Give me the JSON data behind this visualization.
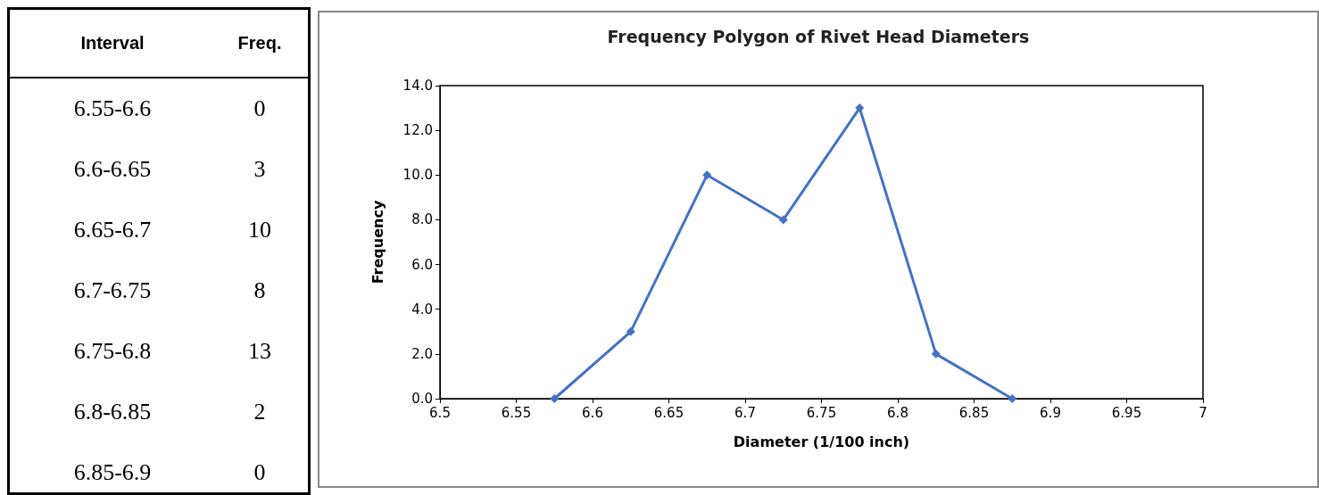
{
  "chart_data": [
    {
      "type": "other",
      "xlabel": "Interval",
      "ylabel": "Freq.",
      "categories": [
        "6.55-6.6",
        "6.6-6.65",
        "6.65-6.7",
        "6.7-6.75",
        "6.75-6.8",
        "6.8-6.85",
        "6.85-6.9"
      ],
      "values": [
        0,
        3,
        10,
        8,
        13,
        2,
        0
      ],
      "data_labels": true
    },
    {
      "type": "line",
      "title": "Frequency Polygon of Rivet Head Diameters",
      "xlabel": "Diameter (1/100 inch)",
      "ylabel": "Frequency",
      "x": [
        6.575,
        6.625,
        6.675,
        6.725,
        6.775,
        6.825,
        6.875
      ],
      "series": [
        {
          "color": "#4472c4",
          "values": [
            0,
            3,
            10,
            8,
            13,
            2,
            0
          ]
        }
      ],
      "xlim": [
        6.5,
        7
      ],
      "xticks": [
        6.5,
        6.55,
        6.6,
        6.65,
        6.7,
        6.75,
        6.8,
        6.85,
        6.9,
        6.95,
        7
      ],
      "ylim": [
        0,
        14
      ],
      "yticks": [
        {
          "value": 0,
          "label": "0.0"
        },
        {
          "value": 2,
          "label": "2.0"
        },
        {
          "value": 4,
          "label": "4.0"
        },
        {
          "value": 6,
          "label": "6.0"
        },
        {
          "value": 8,
          "label": "8.0"
        },
        {
          "value": 10,
          "label": "10.0"
        },
        {
          "value": 12,
          "label": "12.0"
        },
        {
          "value": 14,
          "label": "14.0"
        }
      ],
      "marker": "diamond",
      "line_style": "solid",
      "grid": false
    }
  ]
}
